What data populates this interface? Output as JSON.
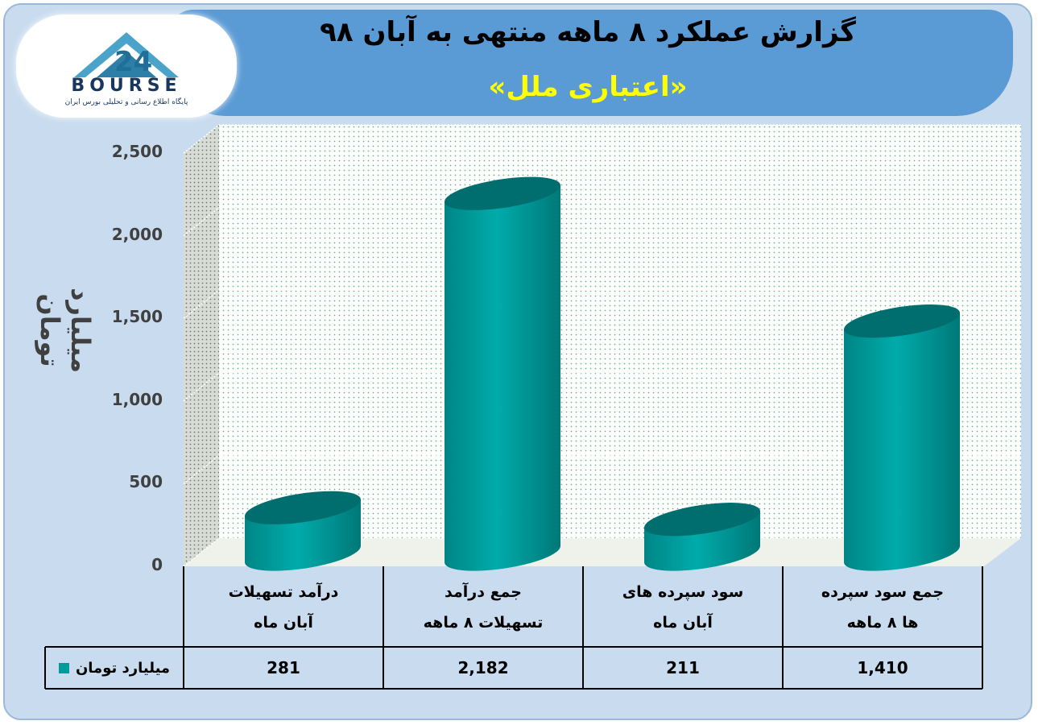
{
  "title": {
    "main": "گزارش عملکرد ۸ ماهه منتهی به آبان ۹۸",
    "sub": "«اعتباری ملل»"
  },
  "logo": {
    "text": "BOURSE",
    "tagline": "پایگاه اطلاع رسانی و تحلیلی بورس ایران"
  },
  "colors": {
    "bar": "#009a9a",
    "bar_top": "#006e6e",
    "banner": "#5b9bd5",
    "title_sub": "#ffff00"
  },
  "chart_data": {
    "type": "bar",
    "ylabel": "میلیارد تومان",
    "ylim": [
      0,
      2500
    ],
    "yticks": [
      "0",
      "500",
      "1,000",
      "1,500",
      "2,000",
      "2,500"
    ],
    "categories": [
      [
        "درآمد تسهیلات",
        "آبان ماه"
      ],
      [
        "جمع درآمد",
        "تسهیلات ۸ ماهه"
      ],
      [
        "سود سپرده های",
        "آبان ماه"
      ],
      [
        "جمع سود سپرده",
        "ها ۸ ماهه"
      ]
    ],
    "series": [
      {
        "name": "میلیارد تومان",
        "values": [
          281,
          2182,
          211,
          1410
        ],
        "labels": [
          "281",
          "2,182",
          "211",
          "1,410"
        ]
      }
    ],
    "grid": true,
    "legend": "data-table"
  }
}
